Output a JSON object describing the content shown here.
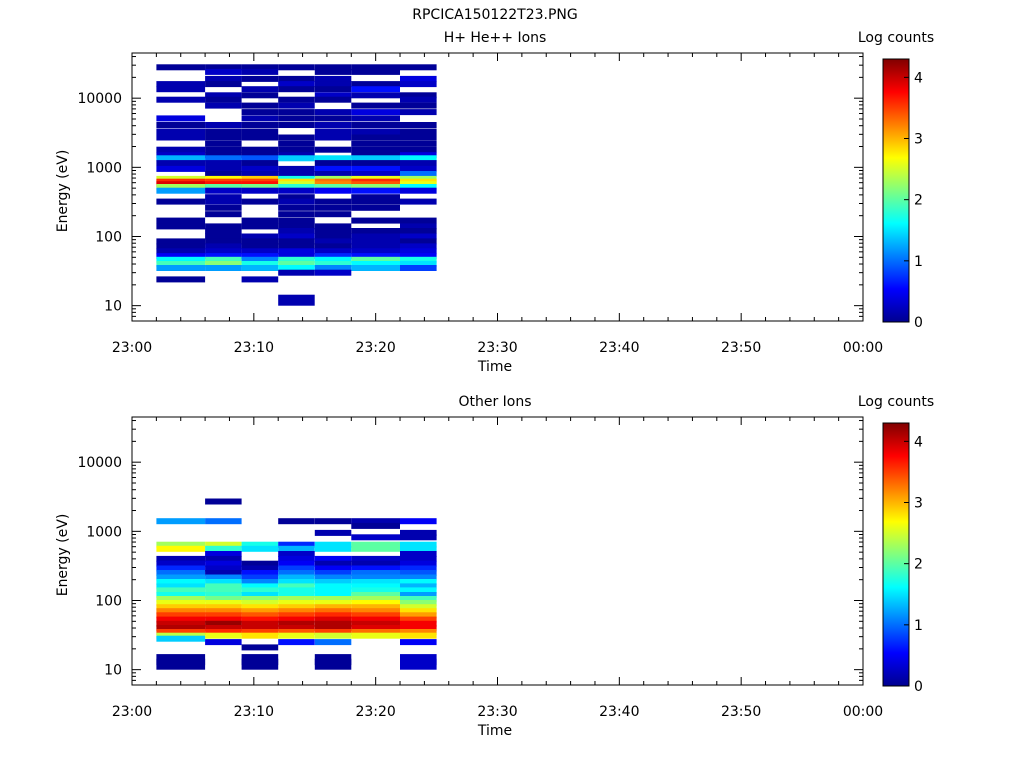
{
  "figure_title": "RPCICA150122T23.PNG",
  "chart_data": [
    {
      "type": "heatmap",
      "title": "H+ He++ Ions",
      "xlabel": "Time",
      "ylabel": "Energy (eV)",
      "x_ticks": [
        "23:00",
        "23:10",
        "23:20",
        "23:30",
        "23:40",
        "23:50",
        "00:00"
      ],
      "x_range": [
        "23:00",
        "00:00"
      ],
      "y_scale": "log",
      "y_ticks": [
        "10",
        "100",
        "1000",
        "10000"
      ],
      "y_range": [
        6,
        45000
      ],
      "colorbar_label": "Log counts",
      "colorbar_ticks": [
        "0",
        "1",
        "2",
        "3",
        "4"
      ],
      "colorbar_range": [
        0,
        4.3
      ],
      "colormap": "jet",
      "time_columns": [
        [
          "23:02",
          "23:06"
        ],
        [
          "23:06",
          "23:09"
        ],
        [
          "23:09",
          "23:12"
        ],
        [
          "23:12",
          "23:15"
        ],
        [
          "23:15",
          "23:18"
        ],
        [
          "23:18",
          "23:22"
        ],
        [
          "23:22",
          "23:25"
        ]
      ],
      "cells": [
        {
          "e": 28000,
          "v": [
            0.1,
            0.1,
            0.1,
            0.1,
            0.1,
            0.1,
            0.1
          ]
        },
        {
          "e": 24000,
          "v": [
            null,
            0.3,
            0.2,
            null,
            0.1,
            0.1,
            null
          ]
        },
        {
          "e": 19000,
          "v": [
            null,
            0.2,
            0.1,
            0.1,
            0.2,
            null,
            0.4
          ]
        },
        {
          "e": 16000,
          "v": [
            0.2,
            0.1,
            null,
            0.3,
            0.2,
            0.1,
            0.3
          ]
        },
        {
          "e": 13500,
          "v": [
            0.2,
            null,
            0.2,
            0.1,
            0.1,
            0.6,
            null
          ]
        },
        {
          "e": 11000,
          "v": [
            null,
            0.2,
            0.1,
            null,
            0.3,
            0.2,
            0.1
          ]
        },
        {
          "e": 9500,
          "v": [
            0.2,
            0.1,
            null,
            0.1,
            0.1,
            null,
            0.2
          ]
        },
        {
          "e": 7800,
          "v": [
            null,
            0.2,
            0.1,
            0.2,
            null,
            0.1,
            0.1
          ]
        },
        {
          "e": 6300,
          "v": [
            null,
            null,
            0.1,
            0.1,
            0.2,
            0.4,
            0.2
          ]
        },
        {
          "e": 5100,
          "v": [
            0.4,
            null,
            0.2,
            0.1,
            0.1,
            0.2,
            null
          ]
        },
        {
          "e": 4100,
          "v": [
            0.1,
            0.2,
            0.1,
            0.1,
            0.2,
            0.1,
            0.1
          ]
        },
        {
          "e": 3300,
          "v": [
            0.2,
            0.1,
            0.1,
            null,
            0.2,
            0.2,
            0.1
          ]
        },
        {
          "e": 2700,
          "v": [
            0.2,
            0.1,
            0.1,
            0.1,
            0.2,
            0.1,
            0.1
          ]
        },
        {
          "e": 2200,
          "v": [
            null,
            0.1,
            null,
            0.1,
            null,
            0.1,
            0.1
          ]
        },
        {
          "e": 1800,
          "v": [
            0.2,
            0.1,
            0.1,
            0.1,
            0.1,
            0.1,
            0.1
          ]
        },
        {
          "e": 1500,
          "v": [
            0.3,
            0.1,
            0.1,
            0.2,
            null,
            0.1,
            0.4
          ]
        },
        {
          "e": 1350,
          "v": [
            1.3,
            1.0,
            0.9,
            1.4,
            1.5,
            1.4,
            1.6
          ]
        },
        {
          "e": 1150,
          "v": [
            0.2,
            0.2,
            0.1,
            null,
            0.1,
            0.1,
            0.2
          ]
        },
        {
          "e": 950,
          "v": [
            0.4,
            0.2,
            0.3,
            0.2,
            0.6,
            0.6,
            0.3
          ]
        },
        {
          "e": 800,
          "v": [
            null,
            0.1,
            0.2,
            0.2,
            0.2,
            0.3,
            1.0
          ]
        },
        {
          "e": 680,
          "v": [
            2.5,
            2.7,
            2.9,
            1.7,
            2.3,
            2.6,
            2.3
          ]
        },
        {
          "e": 620,
          "v": [
            3.6,
            3.5,
            3.5,
            2.8,
            3.3,
            3.6,
            2.8
          ]
        },
        {
          "e": 570,
          "v": [
            3.9,
            3.7,
            3.7,
            2.5,
            3.2,
            3.4,
            2.6
          ]
        },
        {
          "e": 520,
          "v": [
            2.3,
            2.0,
            2.1,
            1.8,
            2.0,
            2.2,
            1.6
          ]
        },
        {
          "e": 460,
          "v": [
            1.2,
            0.3,
            0.3,
            0.3,
            0.5,
            0.6,
            0.4
          ]
        },
        {
          "e": 370,
          "v": [
            null,
            0.2,
            null,
            0.1,
            null,
            0.1,
            null
          ]
        },
        {
          "e": 320,
          "v": [
            0.1,
            0.2,
            0.1,
            0.2,
            0.1,
            0.1,
            0.2
          ]
        },
        {
          "e": 260,
          "v": [
            null,
            0.1,
            null,
            0.1,
            0.1,
            0.1,
            null
          ]
        },
        {
          "e": 210,
          "v": [
            null,
            0.1,
            null,
            0.1,
            0.1,
            null,
            null
          ]
        },
        {
          "e": 170,
          "v": [
            0.1,
            null,
            0.1,
            0.1,
            null,
            0.1,
            0.1
          ]
        },
        {
          "e": 140,
          "v": [
            0.1,
            0.1,
            0.1,
            0.1,
            0.1,
            null,
            0.2
          ]
        },
        {
          "e": 120,
          "v": [
            null,
            0.1,
            null,
            0.2,
            0.1,
            0.1,
            0.1
          ]
        },
        {
          "e": 100,
          "v": [
            null,
            0.1,
            0.2,
            0.3,
            0.1,
            0.2,
            0.3
          ]
        },
        {
          "e": 85,
          "v": [
            0.1,
            0.1,
            0.1,
            0.1,
            0.2,
            0.2,
            0.1
          ]
        },
        {
          "e": 72,
          "v": [
            0.1,
            0.2,
            0.1,
            0.1,
            0.1,
            0.2,
            0.3
          ]
        },
        {
          "e": 61,
          "v": [
            0.2,
            0.3,
            0.3,
            0.4,
            0.3,
            0.3,
            0.4
          ]
        },
        {
          "e": 52,
          "v": [
            0.5,
            0.6,
            0.6,
            0.4,
            0.7,
            0.6,
            0.5
          ]
        },
        {
          "e": 46,
          "v": [
            1.6,
            1.9,
            1.1,
            1.8,
            1.6,
            2.0,
            1.7
          ]
        },
        {
          "e": 40,
          "v": [
            1.9,
            2.2,
            1.7,
            2.0,
            1.8,
            1.6,
            1.5
          ]
        },
        {
          "e": 35,
          "v": [
            1.2,
            1.2,
            1.3,
            1.6,
            1.1,
            1.3,
            0.8
          ]
        },
        {
          "e": 30,
          "v": [
            null,
            null,
            null,
            0.2,
            0.3,
            null,
            null
          ]
        },
        {
          "e": 24,
          "v": [
            0.1,
            null,
            0.2,
            null,
            null,
            null,
            null
          ]
        },
        {
          "e": 12,
          "v": [
            null,
            null,
            null,
            0.2,
            null,
            null,
            null
          ]
        }
      ]
    },
    {
      "type": "heatmap",
      "title": "Other Ions",
      "xlabel": "Time",
      "ylabel": "Energy (eV)",
      "x_ticks": [
        "23:00",
        "23:10",
        "23:20",
        "23:30",
        "23:40",
        "23:50",
        "00:00"
      ],
      "x_range": [
        "23:00",
        "00:00"
      ],
      "y_scale": "log",
      "y_ticks": [
        "10",
        "100",
        "1000",
        "10000"
      ],
      "y_range": [
        6,
        45000
      ],
      "colorbar_label": "Log counts",
      "colorbar_ticks": [
        "0",
        "1",
        "2",
        "3",
        "4"
      ],
      "colorbar_range": [
        0,
        4.3
      ],
      "colormap": "jet",
      "time_columns": [
        [
          "23:02",
          "23:06"
        ],
        [
          "23:06",
          "23:09"
        ],
        [
          "23:09",
          "23:12"
        ],
        [
          "23:12",
          "23:15"
        ],
        [
          "23:15",
          "23:18"
        ],
        [
          "23:18",
          "23:22"
        ],
        [
          "23:22",
          "23:25"
        ]
      ],
      "cells": [
        {
          "e": 2700,
          "v": [
            null,
            0.1,
            null,
            null,
            null,
            null,
            null
          ]
        },
        {
          "e": 1400,
          "v": [
            1.2,
            1.0,
            null,
            0.1,
            0.1,
            0.2,
            0.5
          ]
        },
        {
          "e": 1200,
          "v": [
            null,
            null,
            null,
            null,
            null,
            0.1,
            null
          ]
        },
        {
          "e": 950,
          "v": [
            null,
            null,
            null,
            null,
            0.2,
            null,
            0.2
          ]
        },
        {
          "e": 820,
          "v": [
            null,
            null,
            null,
            null,
            null,
            0.3,
            0.2
          ]
        },
        {
          "e": 640,
          "v": [
            2.3,
            2.5,
            1.7,
            0.7,
            1.5,
            2.0,
            1.5
          ]
        },
        {
          "e": 560,
          "v": [
            2.7,
            1.8,
            1.5,
            1.3,
            1.5,
            2.0,
            1.5
          ]
        },
        {
          "e": 470,
          "v": [
            null,
            0.4,
            null,
            0.3,
            null,
            null,
            0.3
          ]
        },
        {
          "e": 400,
          "v": [
            0.2,
            0.2,
            null,
            0.4,
            0.5,
            0.3,
            0.3
          ]
        },
        {
          "e": 340,
          "v": [
            0.3,
            0.4,
            0.1,
            0.5,
            0.2,
            0.2,
            0.4
          ]
        },
        {
          "e": 290,
          "v": [
            0.7,
            0.3,
            0.2,
            0.8,
            0.5,
            0.6,
            0.7
          ]
        },
        {
          "e": 250,
          "v": [
            1.0,
            0.2,
            0.6,
            1.0,
            0.8,
            1.0,
            0.9
          ]
        },
        {
          "e": 215,
          "v": [
            1.2,
            1.1,
            0.8,
            1.3,
            1.1,
            1.1,
            1.1
          ]
        },
        {
          "e": 185,
          "v": [
            1.6,
            1.5,
            1.1,
            1.5,
            1.4,
            1.5,
            1.6
          ]
        },
        {
          "e": 160,
          "v": [
            1.5,
            1.9,
            1.6,
            1.9,
            1.6,
            1.6,
            1.3
          ]
        },
        {
          "e": 140,
          "v": [
            1.9,
            1.9,
            1.8,
            1.7,
            1.6,
            1.7,
            1.6
          ]
        },
        {
          "e": 120,
          "v": [
            1.7,
            1.8,
            1.5,
            1.7,
            1.6,
            2.0,
            1.2
          ]
        },
        {
          "e": 105,
          "v": [
            2.3,
            2.1,
            2.2,
            2.3,
            2.3,
            2.3,
            1.9
          ]
        },
        {
          "e": 92,
          "v": [
            2.6,
            2.6,
            2.5,
            2.6,
            2.6,
            2.7,
            2.2
          ]
        },
        {
          "e": 80,
          "v": [
            2.9,
            2.9,
            2.8,
            2.9,
            3.0,
            3.0,
            2.5
          ]
        },
        {
          "e": 70,
          "v": [
            3.2,
            3.2,
            3.1,
            3.2,
            3.3,
            3.2,
            2.8
          ]
        },
        {
          "e": 61,
          "v": [
            3.5,
            3.5,
            3.4,
            3.5,
            3.6,
            3.5,
            3.1
          ]
        },
        {
          "e": 53,
          "v": [
            3.8,
            3.8,
            3.7,
            3.8,
            3.9,
            3.8,
            3.5
          ]
        },
        {
          "e": 46,
          "v": [
            4.0,
            4.2,
            4.0,
            4.1,
            4.1,
            4.0,
            3.8
          ]
        },
        {
          "e": 40,
          "v": [
            4.1,
            4.0,
            4.0,
            4.0,
            4.1,
            3.9,
            3.8
          ]
        },
        {
          "e": 35,
          "v": [
            3.5,
            3.6,
            3.5,
            3.4,
            3.5,
            3.3,
            3.2
          ]
        },
        {
          "e": 31,
          "v": [
            2.4,
            2.6,
            2.8,
            2.6,
            2.5,
            2.6,
            2.8
          ]
        },
        {
          "e": 28,
          "v": [
            1.4,
            null,
            null,
            null,
            null,
            null,
            null
          ]
        },
        {
          "e": 25,
          "v": [
            null,
            0.4,
            null,
            0.6,
            1.0,
            null,
            0.5
          ]
        },
        {
          "e": 21,
          "v": [
            null,
            null,
            0.1,
            null,
            null,
            null,
            null
          ]
        },
        {
          "e": 14,
          "v": [
            0.1,
            null,
            0.1,
            null,
            0.1,
            null,
            0.3
          ]
        },
        {
          "e": 12,
          "v": [
            0.1,
            null,
            0.1,
            null,
            0.1,
            null,
            0.3
          ]
        }
      ]
    }
  ]
}
